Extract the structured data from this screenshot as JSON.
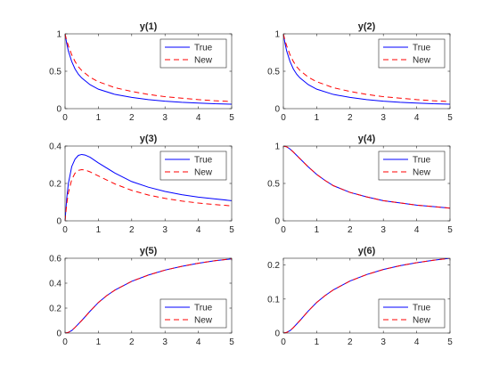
{
  "chart_data": [
    {
      "type": "line",
      "title": "y(1)",
      "xlim": [
        0,
        5
      ],
      "ylim": [
        0,
        1
      ],
      "xticks": [
        0,
        1,
        2,
        3,
        4,
        5
      ],
      "yticks": [
        0,
        0.5,
        1
      ],
      "legend": "top-right",
      "series": [
        {
          "name": "True",
          "color": "#0000ff",
          "dash": "solid",
          "x": [
            0,
            0.05,
            0.1,
            0.2,
            0.3,
            0.4,
            0.5,
            0.75,
            1,
            1.5,
            2,
            2.5,
            3,
            3.5,
            4,
            4.5,
            5
          ],
          "y": [
            1.0,
            0.87,
            0.77,
            0.63,
            0.53,
            0.46,
            0.41,
            0.32,
            0.26,
            0.19,
            0.15,
            0.12,
            0.1,
            0.085,
            0.075,
            0.065,
            0.06
          ]
        },
        {
          "name": "New",
          "color": "#ff0000",
          "dash": "dashed",
          "x": [
            0,
            0.05,
            0.1,
            0.2,
            0.3,
            0.4,
            0.5,
            0.75,
            1,
            1.5,
            2,
            2.5,
            3,
            3.5,
            4,
            4.5,
            5
          ],
          "y": [
            1.0,
            0.91,
            0.84,
            0.72,
            0.63,
            0.56,
            0.51,
            0.42,
            0.36,
            0.28,
            0.23,
            0.19,
            0.16,
            0.14,
            0.12,
            0.105,
            0.095
          ]
        }
      ]
    },
    {
      "type": "line",
      "title": "y(2)",
      "xlim": [
        0,
        5
      ],
      "ylim": [
        0,
        1
      ],
      "xticks": [
        0,
        1,
        2,
        3,
        4,
        5
      ],
      "yticks": [
        0,
        0.5,
        1
      ],
      "legend": "top-right",
      "series": [
        {
          "name": "True",
          "color": "#0000ff",
          "dash": "solid",
          "x": [
            0,
            0.05,
            0.1,
            0.2,
            0.3,
            0.4,
            0.5,
            0.75,
            1,
            1.5,
            2,
            2.5,
            3,
            3.5,
            4,
            4.5,
            5
          ],
          "y": [
            1.0,
            0.87,
            0.77,
            0.63,
            0.53,
            0.46,
            0.41,
            0.32,
            0.26,
            0.19,
            0.15,
            0.12,
            0.1,
            0.085,
            0.075,
            0.065,
            0.06
          ]
        },
        {
          "name": "New",
          "color": "#ff0000",
          "dash": "dashed",
          "x": [
            0,
            0.05,
            0.1,
            0.2,
            0.3,
            0.4,
            0.5,
            0.75,
            1,
            1.5,
            2,
            2.5,
            3,
            3.5,
            4,
            4.5,
            5
          ],
          "y": [
            1.0,
            0.91,
            0.84,
            0.72,
            0.63,
            0.56,
            0.51,
            0.42,
            0.36,
            0.28,
            0.23,
            0.19,
            0.16,
            0.14,
            0.12,
            0.105,
            0.095
          ]
        }
      ]
    },
    {
      "type": "line",
      "title": "y(3)",
      "xlim": [
        0,
        5
      ],
      "ylim": [
        0,
        0.4
      ],
      "xticks": [
        0,
        1,
        2,
        3,
        4,
        5
      ],
      "yticks": [
        0,
        0.2,
        0.4
      ],
      "legend": "top-right",
      "series": [
        {
          "name": "True",
          "color": "#0000ff",
          "dash": "solid",
          "x": [
            0,
            0.05,
            0.1,
            0.2,
            0.3,
            0.4,
            0.5,
            0.6,
            0.75,
            1,
            1.5,
            2,
            2.5,
            3,
            3.5,
            4,
            4.5,
            5
          ],
          "y": [
            0,
            0.12,
            0.2,
            0.29,
            0.33,
            0.35,
            0.355,
            0.352,
            0.34,
            0.31,
            0.255,
            0.21,
            0.18,
            0.157,
            0.14,
            0.127,
            0.117,
            0.108
          ]
        },
        {
          "name": "New",
          "color": "#ff0000",
          "dash": "dashed",
          "x": [
            0,
            0.05,
            0.1,
            0.2,
            0.3,
            0.4,
            0.5,
            0.6,
            0.75,
            1,
            1.5,
            2,
            2.5,
            3,
            3.5,
            4,
            4.5,
            5
          ],
          "y": [
            0,
            0.09,
            0.15,
            0.22,
            0.255,
            0.27,
            0.274,
            0.272,
            0.262,
            0.24,
            0.197,
            0.163,
            0.138,
            0.12,
            0.106,
            0.095,
            0.087,
            0.08
          ]
        }
      ]
    },
    {
      "type": "line",
      "title": "y(4)",
      "xlim": [
        0,
        5
      ],
      "ylim": [
        0,
        1
      ],
      "xticks": [
        0,
        1,
        2,
        3,
        4,
        5
      ],
      "yticks": [
        0,
        0.5,
        1
      ],
      "legend": "top-right",
      "series": [
        {
          "name": "True",
          "color": "#0000ff",
          "dash": "solid",
          "x": [
            0,
            0.1,
            0.2,
            0.3,
            0.5,
            0.75,
            1,
            1.25,
            1.5,
            2,
            2.5,
            3,
            3.5,
            4,
            4.5,
            5
          ],
          "y": [
            1.0,
            0.99,
            0.96,
            0.92,
            0.83,
            0.72,
            0.62,
            0.54,
            0.47,
            0.38,
            0.32,
            0.27,
            0.24,
            0.21,
            0.19,
            0.17
          ]
        },
        {
          "name": "New",
          "color": "#ff0000",
          "dash": "dashed",
          "x": [
            0,
            0.1,
            0.2,
            0.3,
            0.5,
            0.75,
            1,
            1.25,
            1.5,
            2,
            2.5,
            3,
            3.5,
            4,
            4.5,
            5
          ],
          "y": [
            1.0,
            0.99,
            0.96,
            0.92,
            0.83,
            0.72,
            0.62,
            0.54,
            0.47,
            0.38,
            0.32,
            0.27,
            0.24,
            0.21,
            0.19,
            0.17
          ]
        }
      ]
    },
    {
      "type": "line",
      "title": "y(5)",
      "xlim": [
        0,
        5
      ],
      "ylim": [
        0,
        0.6
      ],
      "xticks": [
        0,
        1,
        2,
        3,
        4,
        5
      ],
      "yticks": [
        0,
        0.2,
        0.4,
        0.6
      ],
      "legend": "bottom-right",
      "series": [
        {
          "name": "True",
          "color": "#0000ff",
          "dash": "solid",
          "x": [
            0,
            0.1,
            0.2,
            0.3,
            0.5,
            0.75,
            1,
            1.25,
            1.5,
            2,
            2.5,
            3,
            3.5,
            4,
            4.5,
            5
          ],
          "y": [
            0,
            0.005,
            0.02,
            0.045,
            0.1,
            0.175,
            0.245,
            0.3,
            0.345,
            0.415,
            0.465,
            0.505,
            0.535,
            0.56,
            0.58,
            0.595
          ]
        },
        {
          "name": "New",
          "color": "#ff0000",
          "dash": "dashed",
          "x": [
            0,
            0.1,
            0.2,
            0.3,
            0.5,
            0.75,
            1,
            1.25,
            1.5,
            2,
            2.5,
            3,
            3.5,
            4,
            4.5,
            5
          ],
          "y": [
            0,
            0.005,
            0.02,
            0.045,
            0.1,
            0.175,
            0.245,
            0.3,
            0.345,
            0.415,
            0.465,
            0.505,
            0.535,
            0.56,
            0.58,
            0.595
          ]
        }
      ]
    },
    {
      "type": "line",
      "title": "y(6)",
      "xlim": [
        0,
        5
      ],
      "ylim": [
        0,
        0.22
      ],
      "xticks": [
        0,
        1,
        2,
        3,
        4,
        5
      ],
      "yticks": [
        0,
        0.1,
        0.2
      ],
      "legend": "bottom-right",
      "series": [
        {
          "name": "True",
          "color": "#0000ff",
          "dash": "solid",
          "x": [
            0,
            0.1,
            0.2,
            0.3,
            0.5,
            0.75,
            1,
            1.25,
            1.5,
            2,
            2.5,
            3,
            3.5,
            4,
            4.5,
            5
          ],
          "y": [
            0,
            0.002,
            0.007,
            0.016,
            0.037,
            0.065,
            0.09,
            0.11,
            0.127,
            0.153,
            0.172,
            0.187,
            0.198,
            0.207,
            0.214,
            0.22
          ]
        },
        {
          "name": "New",
          "color": "#ff0000",
          "dash": "dashed",
          "x": [
            0,
            0.1,
            0.2,
            0.3,
            0.5,
            0.75,
            1,
            1.25,
            1.5,
            2,
            2.5,
            3,
            3.5,
            4,
            4.5,
            5
          ],
          "y": [
            0,
            0.002,
            0.007,
            0.016,
            0.037,
            0.065,
            0.09,
            0.11,
            0.127,
            0.153,
            0.172,
            0.187,
            0.198,
            0.207,
            0.214,
            0.22
          ]
        }
      ]
    }
  ]
}
